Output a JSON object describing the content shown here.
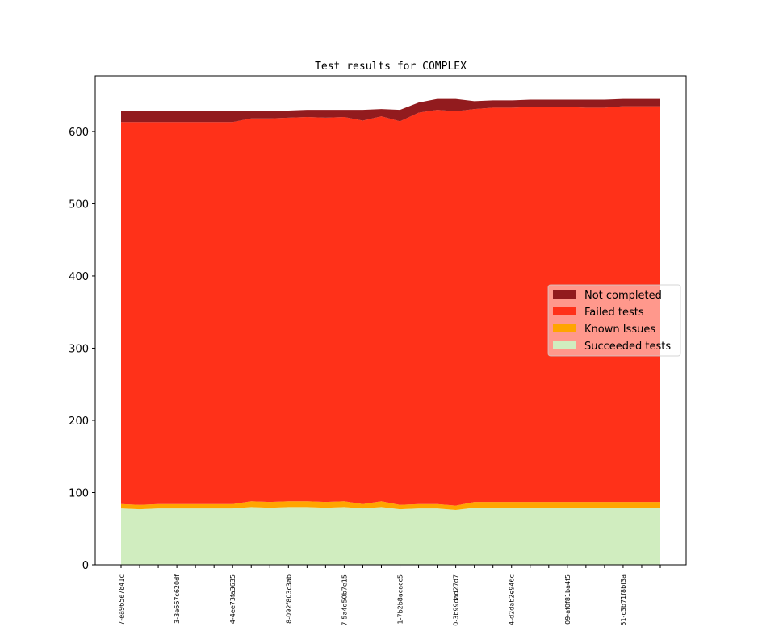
{
  "chart_data": {
    "type": "stacked_area",
    "title": "Test results for COMPLEX",
    "categories": [
      "7-ea965e7841c",
      null,
      null,
      "3-3e667c620df",
      null,
      null,
      "4-4ee73fa3635",
      null,
      null,
      "8-092f803c3ab",
      null,
      null,
      "7-5a4d50b7e15",
      null,
      null,
      "1-7b2b8acacc5",
      null,
      null,
      "0-3b99dad27d7",
      null,
      null,
      "4-d2dab2e946c",
      null,
      null,
      "09-af0f81ba4f5",
      null,
      null,
      "51-c3b71f8bf3a",
      null,
      null
    ],
    "series": [
      {
        "name": "Succeeded tests",
        "color": "#d0edbf",
        "values": [
          78,
          77,
          78,
          78,
          78,
          78,
          78,
          80,
          79,
          80,
          80,
          79,
          80,
          78,
          80,
          77,
          78,
          78,
          76,
          79,
          79,
          79,
          79,
          79,
          79,
          79,
          79,
          79,
          79,
          79
        ]
      },
      {
        "name": "Known Issues",
        "color": "#ffa500",
        "values": [
          6,
          6,
          6,
          6,
          6,
          6,
          6,
          8,
          8,
          8,
          8,
          8,
          8,
          6,
          8,
          6,
          6,
          6,
          6,
          8,
          8,
          8,
          8,
          8,
          8,
          8,
          8,
          8,
          8,
          8
        ]
      },
      {
        "name": "Failed tests",
        "color": "#ff3119",
        "values": [
          529,
          530,
          529,
          529,
          529,
          529,
          529,
          530,
          531,
          531,
          532,
          532,
          532,
          531,
          533,
          531,
          542,
          546,
          546,
          544,
          546,
          546,
          547,
          547,
          547,
          546,
          546,
          548,
          548,
          548
        ]
      },
      {
        "name": "Not completed",
        "color": "#921b1e",
        "values": [
          15,
          15,
          15,
          15,
          15,
          15,
          15,
          10,
          11,
          10,
          10,
          11,
          10,
          15,
          10,
          16,
          14,
          15,
          17,
          11,
          10,
          10,
          10,
          10,
          10,
          11,
          11,
          10,
          10,
          10
        ]
      }
    ],
    "ylim": [
      0,
      677
    ],
    "yticks": [
      0,
      100,
      200,
      300,
      400,
      500,
      600
    ],
    "legend": "center right"
  }
}
